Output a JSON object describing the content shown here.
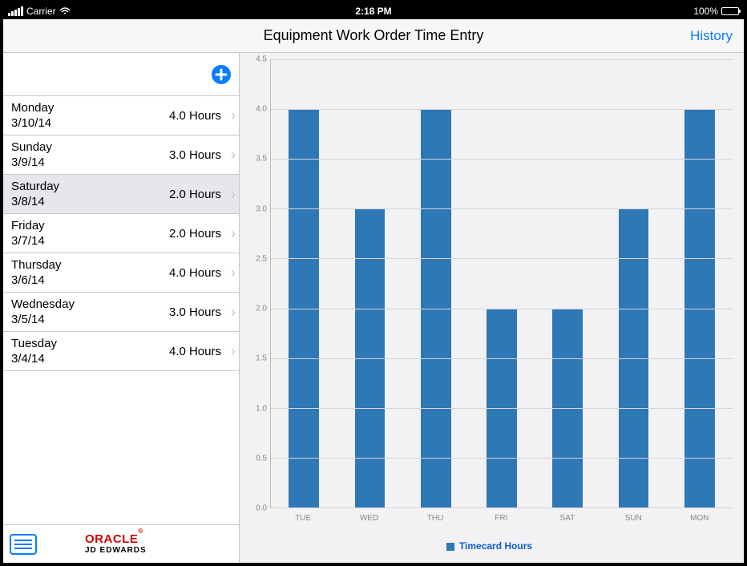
{
  "status_bar": {
    "carrier": "Carrier",
    "wifi": true,
    "time": "2:18 PM",
    "battery_pct": "100%"
  },
  "nav": {
    "title": "Equipment Work Order Time Entry",
    "right_button": "History"
  },
  "sidebar": {
    "add_label": "+",
    "days": [
      {
        "name": "Monday",
        "date": "3/10/14",
        "hours": "4.0 Hours",
        "selected": false
      },
      {
        "name": "Sunday",
        "date": "3/9/14",
        "hours": "3.0 Hours",
        "selected": false
      },
      {
        "name": "Saturday",
        "date": "3/8/14",
        "hours": "2.0 Hours",
        "selected": true
      },
      {
        "name": "Friday",
        "date": "3/7/14",
        "hours": "2.0 Hours",
        "selected": false
      },
      {
        "name": "Thursday",
        "date": "3/6/14",
        "hours": "4.0 Hours",
        "selected": false
      },
      {
        "name": "Wednesday",
        "date": "3/5/14",
        "hours": "3.0 Hours",
        "selected": false
      },
      {
        "name": "Tuesday",
        "date": "3/4/14",
        "hours": "4.0 Hours",
        "selected": false
      }
    ]
  },
  "brand": {
    "oracle": "ORACLE",
    "reg": "®",
    "jde": "JD EDWARDS"
  },
  "chart": {
    "type": "bar",
    "legend_label": "Timecard Hours",
    "bar_color": "#2e78b6",
    "background_color": "#f2f2f4",
    "grid_color": "#d5d5d8",
    "axis_color": "#bbbbbb",
    "label_color": "#888888",
    "legend_color": "#0a5bd0",
    "ylim": [
      0.0,
      4.5
    ],
    "ytick_step": 0.5,
    "yticks": [
      "0.0",
      "0.5",
      "1.0",
      "1.5",
      "2.0",
      "2.5",
      "3.0",
      "3.5",
      "4.0",
      "4.5"
    ],
    "categories": [
      "TUE",
      "WED",
      "THU",
      "FRI",
      "SAT",
      "SUN",
      "MON"
    ],
    "values": [
      4.0,
      3.0,
      4.0,
      2.0,
      2.0,
      3.0,
      4.0
    ],
    "bar_width_ratio": 0.46,
    "label_fontsize": 10
  }
}
